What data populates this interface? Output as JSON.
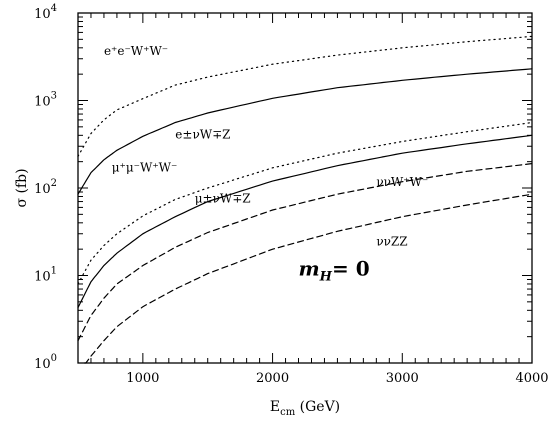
{
  "chart_data": {
    "type": "line",
    "title": "",
    "xlabel": "E<sub>cm</sub> (GeV)",
    "ylabel": "σ (fb)",
    "xlim": [
      500,
      4000
    ],
    "ylim": [
      1,
      10000
    ],
    "yscale": "log",
    "grid": false,
    "x_ticks": [
      1000,
      2000,
      3000,
      4000
    ],
    "x_tick_labels": [
      "1000",
      "2000",
      "3000",
      "4000"
    ],
    "y_ticks": [
      1,
      10,
      100,
      1000,
      10000
    ],
    "y_tick_labels": [
      {
        "base": "10",
        "exp": "0"
      },
      {
        "base": "10",
        "exp": "1"
      },
      {
        "base": "10",
        "exp": "2"
      },
      {
        "base": "10",
        "exp": "3"
      },
      {
        "base": "10",
        "exp": "4"
      }
    ],
    "annotation": {
      "main": "m",
      "sub": "H",
      "rest": "= 0"
    },
    "series": [
      {
        "name": "e⁺e⁻W⁺W⁻",
        "style": "dotted",
        "x": [
          500,
          600,
          700,
          800,
          1000,
          1250,
          1500,
          2000,
          2500,
          3000,
          3500,
          4000
        ],
        "y": [
          230,
          420,
          600,
          780,
          1050,
          1500,
          1850,
          2600,
          3300,
          4000,
          4700,
          5400
        ]
      },
      {
        "name": "μ⁺μ⁻W⁺W⁻",
        "style": "solid",
        "x": [
          500,
          600,
          700,
          800,
          1000,
          1250,
          1500,
          2000,
          2500,
          3000,
          3500,
          4000
        ],
        "y": [
          85,
          150,
          210,
          270,
          390,
          560,
          720,
          1060,
          1400,
          1700,
          2000,
          2300
        ]
      },
      {
        "name": "e±νW∓Z",
        "style": "dotted",
        "x": [
          500,
          600,
          700,
          800,
          1000,
          1250,
          1500,
          2000,
          2500,
          3000,
          3500,
          4000
        ],
        "y": [
          8,
          15,
          22,
          30,
          48,
          74,
          100,
          170,
          250,
          340,
          440,
          560
        ]
      },
      {
        "name": "μ±νW∓Z",
        "style": "solid",
        "x": [
          500,
          600,
          700,
          800,
          1000,
          1250,
          1500,
          2000,
          2500,
          3000,
          3500,
          4000
        ],
        "y": [
          4.3,
          8.5,
          13,
          18,
          30,
          47,
          70,
          120,
          180,
          250,
          320,
          400
        ]
      },
      {
        "name": "ννW⁺W⁻",
        "style": "dashed",
        "x": [
          500,
          600,
          700,
          800,
          1000,
          1250,
          1500,
          2000,
          2500,
          3000,
          3500,
          4000
        ],
        "y": [
          1.8,
          3.5,
          5.5,
          8,
          13,
          21,
          31,
          56,
          85,
          118,
          155,
          190
        ]
      },
      {
        "name": "ννZZ",
        "style": "dashed",
        "x": [
          550,
          600,
          700,
          800,
          1000,
          1250,
          1500,
          2000,
          2500,
          3000,
          3500,
          4000
        ],
        "y": [
          0.95,
          1.2,
          1.8,
          2.6,
          4.4,
          7,
          10.5,
          20,
          32,
          47,
          64,
          85
        ]
      }
    ],
    "label_anchors": [
      {
        "text": "e⁺e⁻W⁺W⁻",
        "x": 700,
        "y": 3300
      },
      {
        "text": "μ⁺μ⁻W⁺W⁻",
        "x": 760,
        "y": 155
      },
      {
        "text": "e±νW∓Z",
        "x": 1250,
        "y": 370
      },
      {
        "text": "μ±νW∓Z",
        "x": 1400,
        "y": 68
      },
      {
        "text": "ννW⁺W⁻",
        "x": 2800,
        "y": 105
      },
      {
        "text": "ννZZ",
        "x": 2800,
        "y": 22
      }
    ],
    "annotation_anchor": {
      "x": 2200,
      "y": 10
    }
  }
}
